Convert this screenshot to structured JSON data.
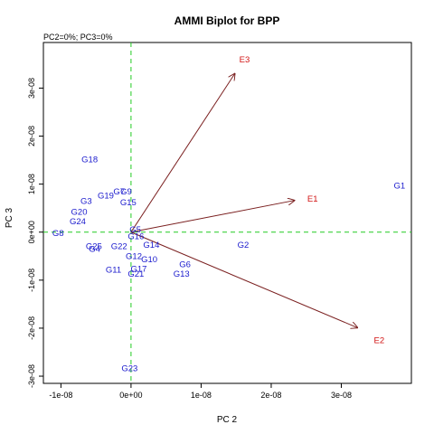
{
  "chart_data": {
    "type": "scatter",
    "title": "AMMI Biplot for BPP",
    "subtitle": "PC2=0%; PC3=0%",
    "xlabel": "PC 2",
    "ylabel": "PC 3",
    "xlim": [
      -1.25e-08,
      4e-08
    ],
    "ylim": [
      -3.15e-08,
      3.95e-08
    ],
    "xticks": [
      {
        "value": -1e-08,
        "label": "-1e-08"
      },
      {
        "value": 0,
        "label": "0e+00"
      },
      {
        "value": 1e-08,
        "label": "1e-08"
      },
      {
        "value": 2e-08,
        "label": "2e-08"
      },
      {
        "value": 3e-08,
        "label": "3e-08"
      }
    ],
    "yticks": [
      {
        "value": -3e-08,
        "label": "-3e-08"
      },
      {
        "value": -2e-08,
        "label": "-2e-08"
      },
      {
        "value": -1e-08,
        "label": "-1e-08"
      },
      {
        "value": 0,
        "label": "0e+00"
      },
      {
        "value": 1e-08,
        "label": "1e-08"
      },
      {
        "value": 2e-08,
        "label": "2e-08"
      },
      {
        "value": 3e-08,
        "label": "3e-08"
      }
    ],
    "reference_lines": {
      "x": 0,
      "y": 0,
      "style": "dashed",
      "color": "#22cc22"
    },
    "genotypes": [
      {
        "label": "G1",
        "x": 3.83e-08,
        "y": 9.7e-09
      },
      {
        "label": "G2",
        "x": 1.6e-08,
        "y": -2.6e-09
      },
      {
        "label": "G3",
        "x": -6.4e-09,
        "y": 6.5e-09
      },
      {
        "label": "G4",
        "x": -5.2e-09,
        "y": -3.4e-09
      },
      {
        "label": "G5",
        "x": 6e-10,
        "y": 6e-10
      },
      {
        "label": "G6",
        "x": 7.7e-09,
        "y": -6.6e-09
      },
      {
        "label": "G7",
        "x": -1.7e-09,
        "y": 8.5e-09
      },
      {
        "label": "G8",
        "x": -1.04e-08,
        "y": -1e-10
      },
      {
        "label": "G9",
        "x": -7e-10,
        "y": 8.5e-09
      },
      {
        "label": "G10",
        "x": 2.6e-09,
        "y": -5.6e-09
      },
      {
        "label": "G11",
        "x": -2.5e-09,
        "y": -7.8e-09
      },
      {
        "label": "G12",
        "x": 4e-10,
        "y": -4.9e-09
      },
      {
        "label": "G13",
        "x": 7.2e-09,
        "y": -8.6e-09
      },
      {
        "label": "G14",
        "x": 2.9e-09,
        "y": -2.6e-09
      },
      {
        "label": "G15",
        "x": -4e-10,
        "y": 6.3e-09
      },
      {
        "label": "G16",
        "x": 7e-10,
        "y": -8e-10
      },
      {
        "label": "G17",
        "x": 1.1e-09,
        "y": -7.6e-09
      },
      {
        "label": "G18",
        "x": -5.9e-09,
        "y": 1.52e-08
      },
      {
        "label": "G19",
        "x": -3.6e-09,
        "y": 7.7e-09
      },
      {
        "label": "G20",
        "x": -7.4e-09,
        "y": 4.3e-09
      },
      {
        "label": "G21",
        "x": 7e-10,
        "y": -8.6e-09
      },
      {
        "label": "G22",
        "x": -1.7e-09,
        "y": -2.9e-09
      },
      {
        "label": "G23",
        "x": -2e-10,
        "y": -2.83e-08
      },
      {
        "label": "G24",
        "x": -7.6e-09,
        "y": 2.3e-09
      },
      {
        "label": "G25",
        "x": -5.3e-09,
        "y": -2.9e-09
      }
    ],
    "environments": [
      {
        "label": "E1",
        "x": 2.59e-08,
        "y": 7e-09,
        "arrow_end": [
          2.33e-08,
          6.6e-09
        ]
      },
      {
        "label": "E2",
        "x": 3.54e-08,
        "y": -2.25e-08,
        "arrow_end": [
          3.23e-08,
          -1.99e-08
        ]
      },
      {
        "label": "E3",
        "x": 1.62e-08,
        "y": 3.6e-08,
        "arrow_end": [
          1.48e-08,
          3.3e-08
        ]
      }
    ],
    "colors": {
      "genotype": "#1a1acd",
      "environment": "#d21414",
      "arrow": "#7a1f1f",
      "reference": "#22cc22"
    }
  }
}
